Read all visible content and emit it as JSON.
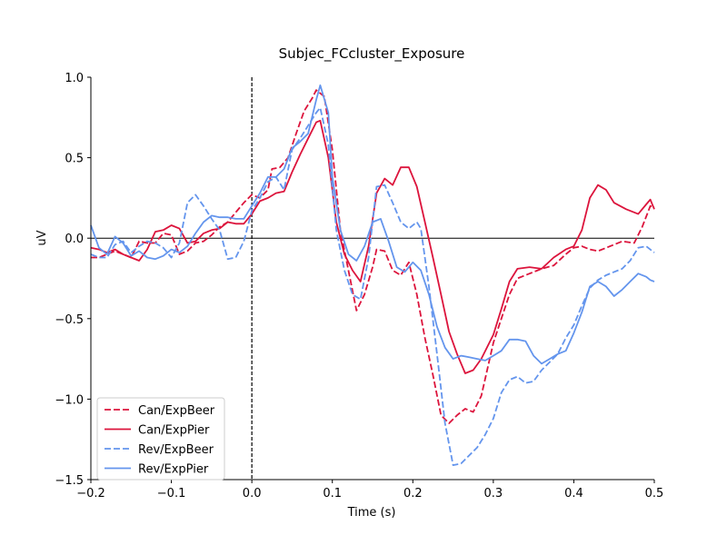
{
  "chart_data": {
    "type": "line",
    "title": "Subjec_FCcluster_Exposure",
    "xlabel": "Time (s)",
    "ylabel": "uV",
    "xlim": [
      -0.2,
      0.5
    ],
    "ylim": [
      -1.5,
      1.0
    ],
    "x_ticks": [
      -0.2,
      -0.1,
      0.0,
      0.1,
      0.2,
      0.3,
      0.4,
      0.5
    ],
    "x_tick_labels": [
      "−0.2",
      "−0.1",
      "0.0",
      "0.1",
      "0.2",
      "0.3",
      "0.4",
      "0.5"
    ],
    "y_ticks": [
      -1.5,
      -1.0,
      -0.5,
      0.0,
      0.5,
      1.0
    ],
    "y_tick_labels": [
      "−1.5",
      "−1.0",
      "−0.5",
      "0.0",
      "0.5",
      "1.0"
    ],
    "grid": false,
    "legend_position": "lower-left",
    "reference_lines": {
      "zero_hline": true,
      "zero_vline_dashed": true
    },
    "series": [
      {
        "name": "Can/ExpBeer",
        "color": "#dc143c",
        "dash": "dashed",
        "points": [
          [
            -0.2,
            -0.12
          ],
          [
            -0.19,
            -0.12
          ],
          [
            -0.18,
            -0.1
          ],
          [
            -0.17,
            -0.08
          ],
          [
            -0.16,
            -0.1
          ],
          [
            -0.15,
            -0.12
          ],
          [
            -0.14,
            -0.02
          ],
          [
            -0.13,
            -0.03
          ],
          [
            -0.12,
            -0.03
          ],
          [
            -0.11,
            0.03
          ],
          [
            -0.1,
            0.02
          ],
          [
            -0.09,
            -0.1
          ],
          [
            -0.08,
            -0.08
          ],
          [
            -0.07,
            -0.03
          ],
          [
            -0.06,
            -0.02
          ],
          [
            -0.05,
            0.02
          ],
          [
            -0.04,
            0.07
          ],
          [
            -0.03,
            0.1
          ],
          [
            -0.02,
            0.16
          ],
          [
            -0.01,
            0.22
          ],
          [
            0.0,
            0.27
          ],
          [
            0.01,
            0.25
          ],
          [
            0.02,
            0.3
          ],
          [
            0.025,
            0.43
          ],
          [
            0.035,
            0.44
          ],
          [
            0.045,
            0.5
          ],
          [
            0.055,
            0.65
          ],
          [
            0.065,
            0.79
          ],
          [
            0.075,
            0.87
          ],
          [
            0.08,
            0.92
          ],
          [
            0.09,
            0.88
          ],
          [
            0.1,
            0.55
          ],
          [
            0.11,
            0.05
          ],
          [
            0.12,
            -0.2
          ],
          [
            0.13,
            -0.45
          ],
          [
            0.14,
            -0.35
          ],
          [
            0.15,
            -0.18
          ],
          [
            0.155,
            -0.07
          ],
          [
            0.165,
            -0.08
          ],
          [
            0.175,
            -0.2
          ],
          [
            0.185,
            -0.23
          ],
          [
            0.195,
            -0.15
          ],
          [
            0.205,
            -0.35
          ],
          [
            0.215,
            -0.62
          ],
          [
            0.225,
            -0.85
          ],
          [
            0.235,
            -1.1
          ],
          [
            0.245,
            -1.15
          ],
          [
            0.255,
            -1.1
          ],
          [
            0.265,
            -1.06
          ],
          [
            0.275,
            -1.08
          ],
          [
            0.285,
            -0.98
          ],
          [
            0.3,
            -0.65
          ],
          [
            0.31,
            -0.5
          ],
          [
            0.32,
            -0.35
          ],
          [
            0.33,
            -0.25
          ],
          [
            0.345,
            -0.22
          ],
          [
            0.36,
            -0.19
          ],
          [
            0.375,
            -0.17
          ],
          [
            0.39,
            -0.1
          ],
          [
            0.4,
            -0.06
          ],
          [
            0.41,
            -0.05
          ],
          [
            0.42,
            -0.07
          ],
          [
            0.43,
            -0.08
          ],
          [
            0.445,
            -0.05
          ],
          [
            0.46,
            -0.02
          ],
          [
            0.475,
            -0.03
          ],
          [
            0.485,
            0.07
          ],
          [
            0.495,
            0.2
          ],
          [
            0.5,
            0.19
          ]
        ]
      },
      {
        "name": "Can/ExpPier",
        "color": "#dc143c",
        "dash": "solid",
        "points": [
          [
            -0.2,
            -0.06
          ],
          [
            -0.19,
            -0.07
          ],
          [
            -0.18,
            -0.09
          ],
          [
            -0.17,
            -0.07
          ],
          [
            -0.16,
            -0.1
          ],
          [
            -0.15,
            -0.12
          ],
          [
            -0.14,
            -0.14
          ],
          [
            -0.13,
            -0.07
          ],
          [
            -0.12,
            0.04
          ],
          [
            -0.11,
            0.05
          ],
          [
            -0.1,
            0.08
          ],
          [
            -0.09,
            0.06
          ],
          [
            -0.08,
            -0.03
          ],
          [
            -0.07,
            -0.02
          ],
          [
            -0.06,
            0.03
          ],
          [
            -0.05,
            0.05
          ],
          [
            -0.04,
            0.06
          ],
          [
            -0.03,
            0.1
          ],
          [
            -0.02,
            0.09
          ],
          [
            -0.01,
            0.09
          ],
          [
            0.0,
            0.15
          ],
          [
            0.01,
            0.23
          ],
          [
            0.02,
            0.25
          ],
          [
            0.03,
            0.28
          ],
          [
            0.04,
            0.29
          ],
          [
            0.05,
            0.41
          ],
          [
            0.06,
            0.52
          ],
          [
            0.07,
            0.62
          ],
          [
            0.08,
            0.72
          ],
          [
            0.085,
            0.73
          ],
          [
            0.095,
            0.5
          ],
          [
            0.105,
            0.1
          ],
          [
            0.115,
            -0.1
          ],
          [
            0.125,
            -0.2
          ],
          [
            0.135,
            -0.27
          ],
          [
            0.145,
            -0.05
          ],
          [
            0.155,
            0.28
          ],
          [
            0.165,
            0.37
          ],
          [
            0.175,
            0.33
          ],
          [
            0.185,
            0.44
          ],
          [
            0.195,
            0.44
          ],
          [
            0.205,
            0.32
          ],
          [
            0.215,
            0.1
          ],
          [
            0.225,
            -0.12
          ],
          [
            0.235,
            -0.35
          ],
          [
            0.245,
            -0.58
          ],
          [
            0.255,
            -0.72
          ],
          [
            0.265,
            -0.84
          ],
          [
            0.275,
            -0.82
          ],
          [
            0.285,
            -0.75
          ],
          [
            0.3,
            -0.6
          ],
          [
            0.31,
            -0.44
          ],
          [
            0.32,
            -0.27
          ],
          [
            0.33,
            -0.19
          ],
          [
            0.345,
            -0.18
          ],
          [
            0.36,
            -0.19
          ],
          [
            0.375,
            -0.12
          ],
          [
            0.39,
            -0.07
          ],
          [
            0.4,
            -0.05
          ],
          [
            0.41,
            0.05
          ],
          [
            0.42,
            0.25
          ],
          [
            0.43,
            0.33
          ],
          [
            0.44,
            0.3
          ],
          [
            0.45,
            0.22
          ],
          [
            0.465,
            0.18
          ],
          [
            0.48,
            0.15
          ],
          [
            0.49,
            0.21
          ],
          [
            0.495,
            0.24
          ],
          [
            0.5,
            0.18
          ]
        ]
      },
      {
        "name": "Rev/ExpBeer",
        "color": "#6495ed",
        "dash": "dashed",
        "points": [
          [
            -0.2,
            -0.1
          ],
          [
            -0.19,
            -0.12
          ],
          [
            -0.18,
            -0.12
          ],
          [
            -0.17,
            -0.04
          ],
          [
            -0.16,
            -0.02
          ],
          [
            -0.15,
            -0.09
          ],
          [
            -0.14,
            -0.05
          ],
          [
            -0.13,
            -0.02
          ],
          [
            -0.12,
            -0.03
          ],
          [
            -0.11,
            -0.06
          ],
          [
            -0.1,
            -0.12
          ],
          [
            -0.09,
            -0.03
          ],
          [
            -0.08,
            0.22
          ],
          [
            -0.07,
            0.27
          ],
          [
            -0.06,
            0.2
          ],
          [
            -0.05,
            0.12
          ],
          [
            -0.04,
            0.05
          ],
          [
            -0.03,
            -0.13
          ],
          [
            -0.02,
            -0.12
          ],
          [
            -0.01,
            -0.02
          ],
          [
            0.0,
            0.17
          ],
          [
            0.01,
            0.25
          ],
          [
            0.02,
            0.35
          ],
          [
            0.03,
            0.38
          ],
          [
            0.04,
            0.3
          ],
          [
            0.05,
            0.55
          ],
          [
            0.06,
            0.62
          ],
          [
            0.07,
            0.7
          ],
          [
            0.08,
            0.78
          ],
          [
            0.085,
            0.81
          ],
          [
            0.095,
            0.58
          ],
          [
            0.105,
            0.05
          ],
          [
            0.115,
            -0.2
          ],
          [
            0.125,
            -0.35
          ],
          [
            0.135,
            -0.38
          ],
          [
            0.145,
            -0.12
          ],
          [
            0.155,
            0.32
          ],
          [
            0.165,
            0.33
          ],
          [
            0.175,
            0.22
          ],
          [
            0.185,
            0.1
          ],
          [
            0.195,
            0.06
          ],
          [
            0.205,
            0.1
          ],
          [
            0.21,
            0.06
          ],
          [
            0.22,
            -0.3
          ],
          [
            0.23,
            -0.72
          ],
          [
            0.24,
            -1.15
          ],
          [
            0.25,
            -1.41
          ],
          [
            0.26,
            -1.4
          ],
          [
            0.27,
            -1.35
          ],
          [
            0.28,
            -1.3
          ],
          [
            0.29,
            -1.22
          ],
          [
            0.3,
            -1.12
          ],
          [
            0.31,
            -0.96
          ],
          [
            0.32,
            -0.88
          ],
          [
            0.33,
            -0.86
          ],
          [
            0.34,
            -0.9
          ],
          [
            0.35,
            -0.89
          ],
          [
            0.36,
            -0.82
          ],
          [
            0.37,
            -0.77
          ],
          [
            0.38,
            -0.72
          ],
          [
            0.39,
            -0.62
          ],
          [
            0.4,
            -0.54
          ],
          [
            0.41,
            -0.42
          ],
          [
            0.42,
            -0.31
          ],
          [
            0.43,
            -0.26
          ],
          [
            0.44,
            -0.23
          ],
          [
            0.45,
            -0.21
          ],
          [
            0.46,
            -0.19
          ],
          [
            0.47,
            -0.14
          ],
          [
            0.48,
            -0.06
          ],
          [
            0.49,
            -0.05
          ],
          [
            0.5,
            -0.09
          ]
        ]
      },
      {
        "name": "Rev/ExpPier",
        "color": "#6495ed",
        "dash": "solid",
        "points": [
          [
            -0.2,
            0.08
          ],
          [
            -0.19,
            -0.06
          ],
          [
            -0.18,
            -0.1
          ],
          [
            -0.17,
            0.01
          ],
          [
            -0.16,
            -0.03
          ],
          [
            -0.15,
            -0.11
          ],
          [
            -0.14,
            -0.08
          ],
          [
            -0.13,
            -0.12
          ],
          [
            -0.12,
            -0.13
          ],
          [
            -0.11,
            -0.11
          ],
          [
            -0.1,
            -0.07
          ],
          [
            -0.09,
            -0.09
          ],
          [
            -0.08,
            -0.05
          ],
          [
            -0.07,
            0.03
          ],
          [
            -0.06,
            0.1
          ],
          [
            -0.05,
            0.14
          ],
          [
            -0.04,
            0.13
          ],
          [
            -0.03,
            0.13
          ],
          [
            -0.02,
            0.12
          ],
          [
            -0.01,
            0.12
          ],
          [
            0.0,
            0.2
          ],
          [
            0.01,
            0.28
          ],
          [
            0.02,
            0.38
          ],
          [
            0.03,
            0.38
          ],
          [
            0.04,
            0.43
          ],
          [
            0.05,
            0.56
          ],
          [
            0.06,
            0.6
          ],
          [
            0.07,
            0.65
          ],
          [
            0.08,
            0.86
          ],
          [
            0.085,
            0.95
          ],
          [
            0.095,
            0.78
          ],
          [
            0.1,
            0.38
          ],
          [
            0.11,
            0.05
          ],
          [
            0.12,
            -0.1
          ],
          [
            0.13,
            -0.14
          ],
          [
            0.14,
            -0.05
          ],
          [
            0.15,
            0.1
          ],
          [
            0.16,
            0.12
          ],
          [
            0.17,
            -0.02
          ],
          [
            0.18,
            -0.18
          ],
          [
            0.19,
            -0.21
          ],
          [
            0.2,
            -0.15
          ],
          [
            0.21,
            -0.2
          ],
          [
            0.22,
            -0.35
          ],
          [
            0.23,
            -0.55
          ],
          [
            0.24,
            -0.68
          ],
          [
            0.25,
            -0.75
          ],
          [
            0.26,
            -0.73
          ],
          [
            0.27,
            -0.74
          ],
          [
            0.28,
            -0.75
          ],
          [
            0.29,
            -0.76
          ],
          [
            0.3,
            -0.73
          ],
          [
            0.31,
            -0.7
          ],
          [
            0.32,
            -0.63
          ],
          [
            0.33,
            -0.63
          ],
          [
            0.34,
            -0.64
          ],
          [
            0.35,
            -0.73
          ],
          [
            0.36,
            -0.78
          ],
          [
            0.37,
            -0.75
          ],
          [
            0.38,
            -0.72
          ],
          [
            0.39,
            -0.7
          ],
          [
            0.4,
            -0.59
          ],
          [
            0.41,
            -0.46
          ],
          [
            0.42,
            -0.3
          ],
          [
            0.43,
            -0.27
          ],
          [
            0.44,
            -0.3
          ],
          [
            0.45,
            -0.36
          ],
          [
            0.46,
            -0.32
          ],
          [
            0.47,
            -0.27
          ],
          [
            0.48,
            -0.22
          ],
          [
            0.49,
            -0.24
          ],
          [
            0.495,
            -0.26
          ],
          [
            0.5,
            -0.27
          ]
        ]
      }
    ]
  }
}
